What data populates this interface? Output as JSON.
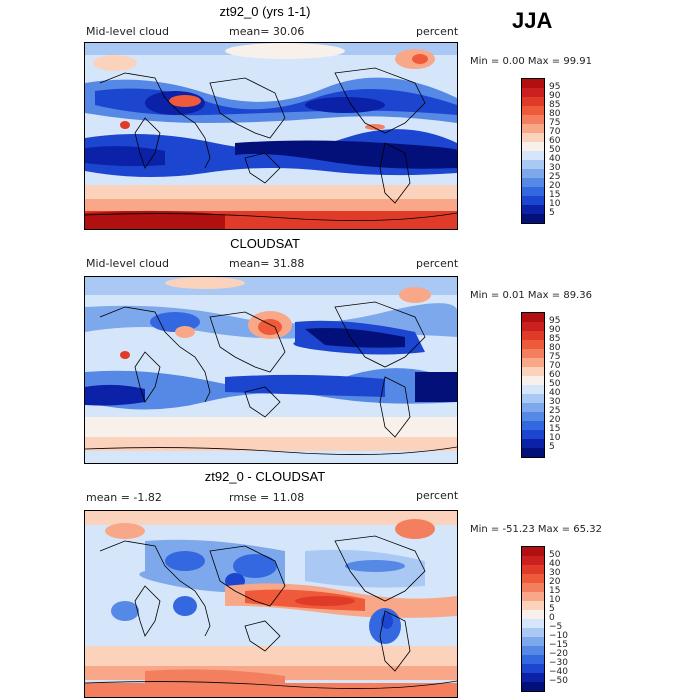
{
  "season": "JJA",
  "panels": [
    {
      "title": "zt92_0 (yrs 1-1)",
      "left_label": "Mid-level cloud",
      "mid_label": "mean=  30.06",
      "right_label": "percent",
      "minmax": "Min =   0.00 Max =  99.91",
      "colorbar": {
        "labels": [
          "95",
          "90",
          "85",
          "80",
          "75",
          "70",
          "60",
          "50",
          "40",
          "30",
          "25",
          "20",
          "15",
          "10",
          "5"
        ],
        "colors": [
          "#b01010",
          "#cc2020",
          "#e03a28",
          "#ef5a3a",
          "#f47f5e",
          "#f8a888",
          "#fbd2bc",
          "#f8f0ea",
          "#d6e6fa",
          "#a9c8f4",
          "#7ea8ec",
          "#5689e6",
          "#3468e0",
          "#1c45d0",
          "#0a21a8",
          "#04107a"
        ]
      }
    },
    {
      "title": "CLOUDSAT",
      "left_label": "Mid-level cloud",
      "mid_label": "mean=  31.88",
      "right_label": "percent",
      "minmax": "Min =   0.01 Max =  89.36",
      "colorbar": {
        "labels": [
          "95",
          "90",
          "85",
          "80",
          "75",
          "70",
          "60",
          "50",
          "40",
          "30",
          "25",
          "20",
          "15",
          "10",
          "5"
        ],
        "colors": [
          "#b01010",
          "#cc2020",
          "#e03a28",
          "#ef5a3a",
          "#f47f5e",
          "#f8a888",
          "#fbd2bc",
          "#f8f0ea",
          "#d6e6fa",
          "#a9c8f4",
          "#7ea8ec",
          "#5689e6",
          "#3468e0",
          "#1c45d0",
          "#0a21a8",
          "#04107a"
        ]
      }
    },
    {
      "title": "zt92_0 - CLOUDSAT",
      "left_label": "mean =   -1.82",
      "mid_label": "rmse =  11.08",
      "right_label": "percent",
      "minmax": "Min = -51.23 Max =  65.32",
      "colorbar": {
        "labels": [
          "50",
          "40",
          "30",
          "20",
          "15",
          "10",
          "5",
          "0",
          "−5",
          "−10",
          "−15",
          "−20",
          "−30",
          "−40",
          "−50"
        ],
        "colors": [
          "#b01010",
          "#cc2020",
          "#e03a28",
          "#ef5a3a",
          "#f47f5e",
          "#f8a888",
          "#fbd2bc",
          "#f8f0ea",
          "#d6e6fa",
          "#a9c8f4",
          "#7ea8ec",
          "#5689e6",
          "#3468e0",
          "#1c45d0",
          "#0a21a8",
          "#04107a"
        ]
      }
    }
  ]
}
